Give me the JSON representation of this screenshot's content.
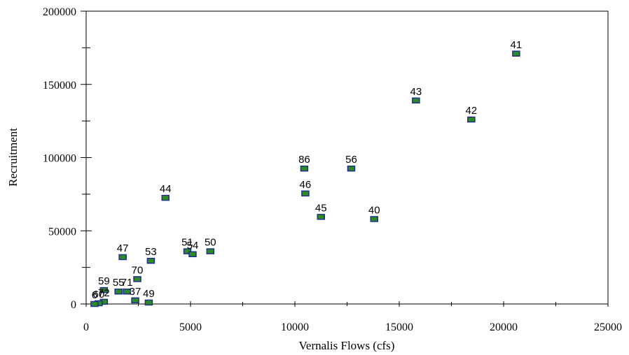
{
  "chart_data": {
    "type": "scatter",
    "title": "",
    "xlabel": "Vernalis Flows (cfs)",
    "ylabel": "Recruitment",
    "xlim": [
      0,
      25000
    ],
    "ylim": [
      0,
      200000
    ],
    "x_ticks": [
      0,
      5000,
      10000,
      15000,
      20000,
      25000
    ],
    "x_tick_labels": [
      "0",
      "5000",
      "10000",
      "15000",
      "20000",
      "25000"
    ],
    "y_ticks": [
      0,
      50000,
      100000,
      150000,
      200000
    ],
    "y_tick_labels": [
      "0",
      "50000",
      "100000",
      "150000",
      "200000"
    ],
    "grid": false,
    "marker_fill": "#2e8b22",
    "marker_edge": "#1f2f8f",
    "points": [
      {
        "label": "41",
        "x": 20600,
        "y": 171000
      },
      {
        "label": "43",
        "x": 15800,
        "y": 139000
      },
      {
        "label": "42",
        "x": 18450,
        "y": 126000
      },
      {
        "label": "86",
        "x": 10450,
        "y": 92500
      },
      {
        "label": "56",
        "x": 12700,
        "y": 92500
      },
      {
        "label": "46",
        "x": 10500,
        "y": 75500
      },
      {
        "label": "44",
        "x": 3800,
        "y": 72500
      },
      {
        "label": "45",
        "x": 11250,
        "y": 59500
      },
      {
        "label": "40",
        "x": 13800,
        "y": 58000
      },
      {
        "label": "51",
        "x": 4850,
        "y": 36000
      },
      {
        "label": "54",
        "x": 5100,
        "y": 34000
      },
      {
        "label": "50",
        "x": 5950,
        "y": 36000
      },
      {
        "label": "47",
        "x": 1750,
        "y": 32000
      },
      {
        "label": "53",
        "x": 3100,
        "y": 29500
      },
      {
        "label": "70",
        "x": 2450,
        "y": 17000
      },
      {
        "label": "59",
        "x": 850,
        "y": 9500
      },
      {
        "label": "55",
        "x": 1550,
        "y": 8500
      },
      {
        "label": "71",
        "x": 1950,
        "y": 8500
      },
      {
        "label": "37",
        "x": 2350,
        "y": 2500
      },
      {
        "label": "49",
        "x": 3000,
        "y": 1000
      },
      {
        "label": "72",
        "x": 850,
        "y": 1500
      },
      {
        "label": "60",
        "x": 600,
        "y": 500
      },
      {
        "label": "6",
        "x": 400,
        "y": 0
      }
    ]
  }
}
